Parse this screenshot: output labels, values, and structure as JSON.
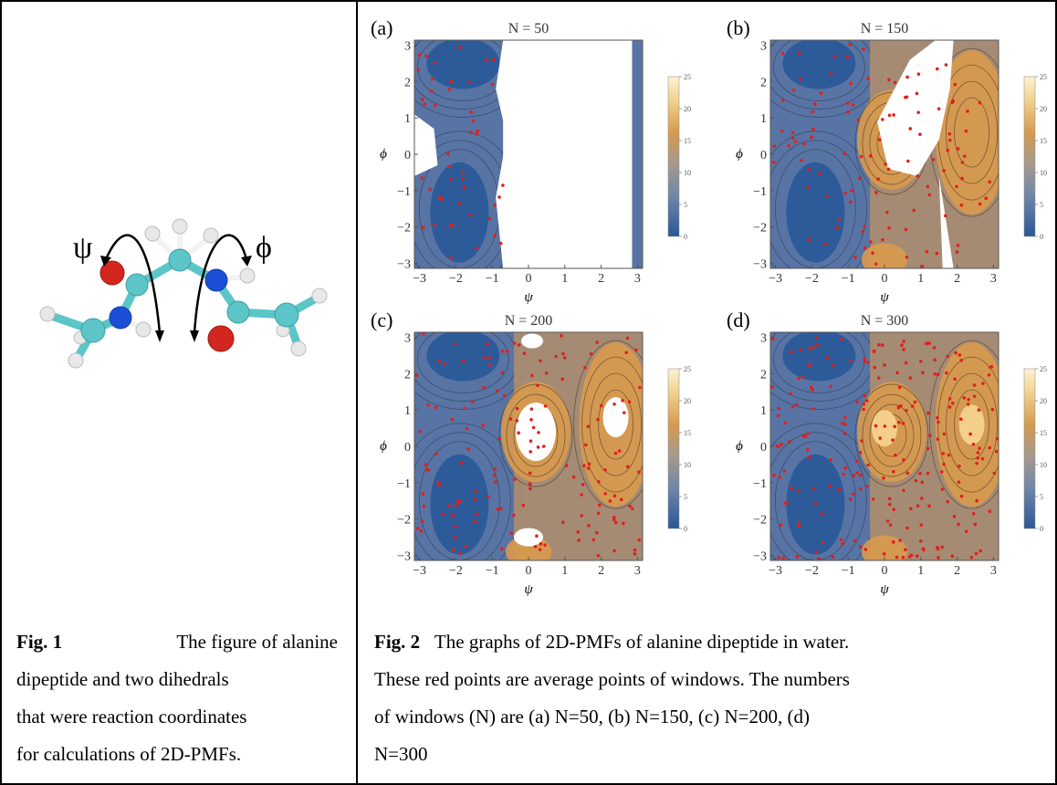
{
  "figure1": {
    "psi_symbol": "ψ",
    "phi_symbol": "ϕ",
    "caption_label": "Fig. 1",
    "caption_lines": [
      "The figure of alanine",
      "dipeptide and two dihedrals",
      "that were reaction coordinates",
      "for calculations of 2D-PMFs."
    ]
  },
  "figure2": {
    "caption_label": "Fig. 2",
    "caption_lines": [
      "The graphs of 2D-PMFs of alanine dipeptide in water.",
      "These red points are average points of windows. The numbers",
      "of windows (N) are (a) N=50, (b) N=150, (c) N=200, (d)",
      "N=300"
    ]
  },
  "chart_data": [
    {
      "type": "heatmap",
      "panel_label": "(a)",
      "title": "N = 50",
      "xlabel": "ψ",
      "ylabel": "ϕ",
      "xlim": [
        -3.14,
        3.14
      ],
      "ylim": [
        -3.14,
        3.14
      ],
      "xticks": [
        "-3",
        "-2",
        "-1",
        "0",
        "1",
        "2",
        "3"
      ],
      "yticks": [
        "-3",
        "-2",
        "-1",
        "0",
        "1",
        "2",
        "3"
      ],
      "colorbar_ticks": [
        "0",
        "5",
        "10",
        "15",
        "20",
        "25"
      ],
      "colorbar_range": [
        0,
        25
      ]
    },
    {
      "type": "heatmap",
      "panel_label": "(b)",
      "title": "N = 150",
      "xlabel": "ψ",
      "ylabel": "ϕ",
      "xlim": [
        -3.14,
        3.14
      ],
      "ylim": [
        -3.14,
        3.14
      ],
      "xticks": [
        "-3",
        "-2",
        "-1",
        "0",
        "1",
        "2",
        "3"
      ],
      "yticks": [
        "-3",
        "-2",
        "-1",
        "0",
        "1",
        "2",
        "3"
      ],
      "colorbar_ticks": [
        "0",
        "5",
        "10",
        "15",
        "20",
        "25"
      ],
      "colorbar_range": [
        0,
        25
      ]
    },
    {
      "type": "heatmap",
      "panel_label": "(c)",
      "title": "N = 200",
      "xlabel": "ψ",
      "ylabel": "ϕ",
      "xlim": [
        -3.14,
        3.14
      ],
      "ylim": [
        -3.14,
        3.14
      ],
      "xticks": [
        "-3",
        "-2",
        "-1",
        "0",
        "1",
        "2",
        "3"
      ],
      "yticks": [
        "-3",
        "-2",
        "-1",
        "0",
        "1",
        "2",
        "3"
      ],
      "colorbar_ticks": [
        "0",
        "5",
        "10",
        "15",
        "20",
        "25"
      ],
      "colorbar_range": [
        0,
        25
      ]
    },
    {
      "type": "heatmap",
      "panel_label": "(d)",
      "title": "N = 300",
      "xlabel": "ψ",
      "ylabel": "ϕ",
      "xlim": [
        -3.14,
        3.14
      ],
      "ylim": [
        -3.14,
        3.14
      ],
      "xticks": [
        "-3",
        "-2",
        "-1",
        "0",
        "1",
        "2",
        "3"
      ],
      "yticks": [
        "-3",
        "-2",
        "-1",
        "0",
        "1",
        "2",
        "3"
      ],
      "colorbar_ticks": [
        "0",
        "5",
        "10",
        "15",
        "20",
        "25"
      ],
      "colorbar_range": [
        0,
        25
      ]
    }
  ],
  "colors": {
    "low": "#2d5b9a",
    "mid": "#8d8fa0",
    "high": "#d99a4e",
    "top": "#fbeec4",
    "point": "#e0201c",
    "blank": "#ffffff"
  }
}
